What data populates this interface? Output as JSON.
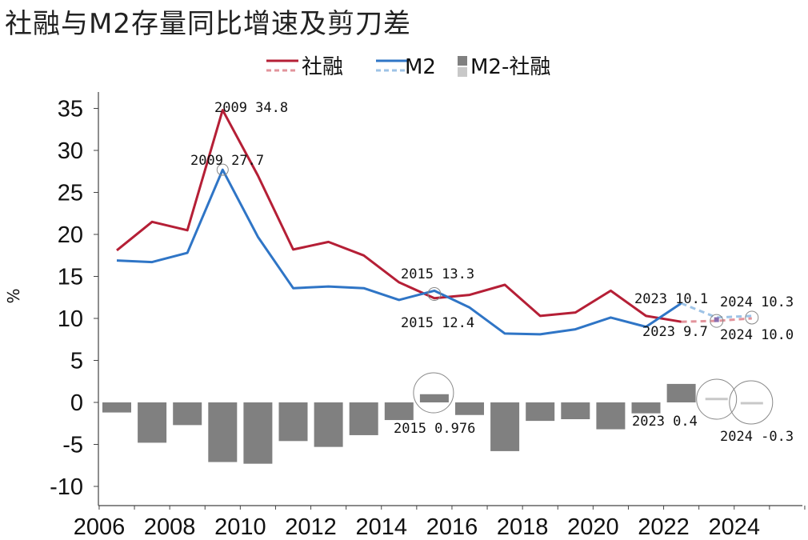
{
  "chart_data": {
    "type": "line",
    "title": "社融与M2存量同比增速及剪刀差",
    "ylabel": "%",
    "ylim": [
      -12,
      37
    ],
    "x_ticks": [
      "2006",
      "2008",
      "2010",
      "2012",
      "2014",
      "2016",
      "2018",
      "2020",
      "2022",
      "2024"
    ],
    "y_ticks": [
      "35",
      "30",
      "25",
      "20",
      "15",
      "10",
      "5",
      "0",
      "-5",
      "-10"
    ],
    "legend": [
      "社融",
      "M2",
      "M2-社融"
    ],
    "legend_position": "top-center",
    "grid": false,
    "categories": [
      2006,
      2007,
      2008,
      2009,
      2010,
      2011,
      2012,
      2013,
      2014,
      2015,
      2016,
      2017,
      2018,
      2019,
      2020,
      2021,
      2022,
      2023,
      2024
    ],
    "series": [
      {
        "name": "社融",
        "color": "#b51f36",
        "values": [
          18.1,
          21.5,
          20.5,
          34.8,
          27.0,
          18.2,
          19.1,
          17.5,
          14.3,
          12.4,
          12.8,
          14.0,
          10.3,
          10.7,
          13.3,
          10.3,
          9.6,
          9.7,
          10.0
        ]
      },
      {
        "name": "M2",
        "color": "#2f75c6",
        "values": [
          16.9,
          16.7,
          17.8,
          27.7,
          19.7,
          13.6,
          13.8,
          13.6,
          12.2,
          13.3,
          11.3,
          8.2,
          8.1,
          8.7,
          10.1,
          9.0,
          11.8,
          10.1,
          10.3
        ]
      },
      {
        "name": "M2-社融",
        "color": "#808080",
        "values": [
          -1.2,
          -4.8,
          -2.7,
          -7.1,
          -7.3,
          -4.6,
          -5.3,
          -3.9,
          -2.1,
          0.976,
          -1.5,
          -5.8,
          -2.2,
          -2.0,
          -3.2,
          -1.3,
          2.2,
          0.4,
          -0.3
        ]
      }
    ],
    "annotations": [
      "2009 34.8",
      "2009 27.7",
      "2015 13.3",
      "2015 12.4",
      "2015 0.976",
      "2023 10.1",
      "2023 9.7",
      "2023 0.4",
      "2024 10.3",
      "2024 10.0",
      "2024 -0.3"
    ]
  }
}
